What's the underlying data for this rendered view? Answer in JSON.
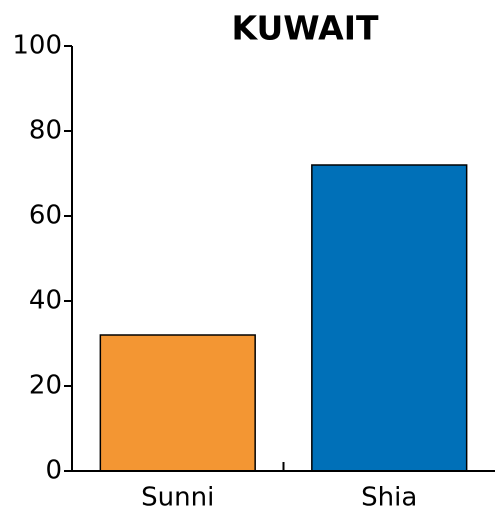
{
  "chart_data": {
    "type": "bar",
    "title": "KUWAIT",
    "categories": [
      "Sunni",
      "Shia"
    ],
    "values": [
      32,
      72
    ],
    "colors": [
      "#f39633",
      "#0070b8"
    ],
    "ylim": [
      0,
      100
    ],
    "yticks": [
      0,
      20,
      40,
      60,
      80,
      100
    ]
  }
}
